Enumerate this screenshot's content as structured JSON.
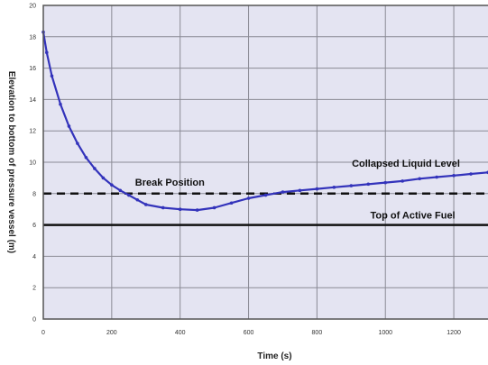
{
  "chart_data": {
    "type": "line",
    "title": "",
    "xlabel": "Time (s)",
    "ylabel": "Elevation to bottom of pressure vessel (m)",
    "xlim": [
      0,
      1300
    ],
    "ylim": [
      0,
      20
    ],
    "x_ticks": [
      0,
      200,
      400,
      600,
      800,
      1000,
      1200
    ],
    "x_tick_labels": [
      "0",
      "200",
      "400",
      "600",
      "800",
      "1000",
      "1200"
    ],
    "y_ticks": [
      0,
      2,
      4,
      6,
      8,
      10,
      12,
      14,
      16,
      18,
      20
    ],
    "y_tick_labels": [
      "0",
      "2",
      "4",
      "6",
      "8",
      "10",
      "12",
      "14",
      "16",
      "18",
      "20"
    ],
    "grid": true,
    "background": "#e4e4f2",
    "series": [
      {
        "name": "Collapsed Liquid Level",
        "color": "#3333bb",
        "x": [
          0,
          10,
          25,
          50,
          75,
          100,
          125,
          150,
          175,
          200,
          225,
          250,
          275,
          300,
          350,
          400,
          450,
          500,
          550,
          600,
          650,
          700,
          750,
          800,
          850,
          900,
          950,
          1000,
          1050,
          1100,
          1150,
          1200,
          1250,
          1300
        ],
        "y": [
          18.3,
          17.0,
          15.5,
          13.7,
          12.3,
          11.2,
          10.3,
          9.6,
          9.0,
          8.55,
          8.2,
          7.9,
          7.6,
          7.3,
          7.1,
          7.0,
          6.95,
          7.1,
          7.4,
          7.7,
          7.9,
          8.1,
          8.2,
          8.3,
          8.4,
          8.5,
          8.6,
          8.7,
          8.8,
          8.95,
          9.05,
          9.15,
          9.25,
          9.35
        ]
      }
    ],
    "reference_lines": [
      {
        "name": "Break Position",
        "y": 8.0,
        "style": "dashed",
        "color": "#111111"
      },
      {
        "name": "Top of Active Fuel",
        "y": 6.0,
        "style": "solid",
        "color": "#111111"
      }
    ],
    "annotations": [
      {
        "text": "Collapsed Liquid Level",
        "x": 1060,
        "y": 9.7
      },
      {
        "text": "Break Position",
        "x": 370,
        "y": 8.5
      },
      {
        "text": "Top of Active Fuel",
        "x": 1080,
        "y": 6.4
      }
    ]
  }
}
